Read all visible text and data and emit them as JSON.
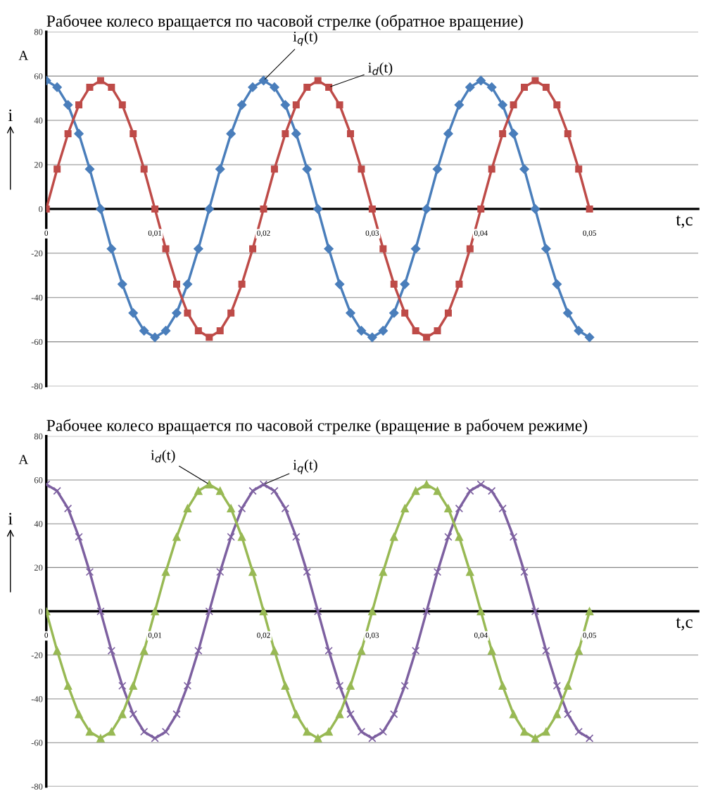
{
  "chart_data": [
    {
      "type": "line",
      "title": "Рабочее колесо вращается по часовой стрелке (обратное вращение)",
      "xlabel": "t,c",
      "ylabel": "i",
      "annotations": [
        "A"
      ],
      "x": [
        0,
        0.001,
        0.002,
        0.003,
        0.004,
        0.005,
        0.006,
        0.007,
        0.008,
        0.009,
        0.01,
        0.011,
        0.012,
        0.013,
        0.014,
        0.015,
        0.016,
        0.017,
        0.018,
        0.019,
        0.02,
        0.021,
        0.022,
        0.023,
        0.024,
        0.025,
        0.026,
        0.027,
        0.028,
        0.029,
        0.03,
        0.031,
        0.032,
        0.033,
        0.034,
        0.035,
        0.036,
        0.037,
        0.038,
        0.039,
        0.04,
        0.041,
        0.042,
        0.043,
        0.044,
        0.045,
        0.046,
        0.047,
        0.048,
        0.049,
        0.05
      ],
      "series": [
        {
          "name": "i$_{q}$(t)",
          "color": "#4a7ebb",
          "marker": "diamond",
          "values": [
            58,
            55,
            47,
            34,
            18,
            0,
            -18,
            -34,
            -47,
            -55,
            -58,
            -55,
            -47,
            -34,
            -18,
            0,
            18,
            34,
            47,
            55,
            58,
            55,
            47,
            34,
            18,
            0,
            -18,
            -34,
            -47,
            -55,
            -58,
            -55,
            -47,
            -34,
            -18,
            0,
            18,
            34,
            47,
            55,
            58,
            55,
            47,
            34,
            18,
            0,
            -18,
            -34,
            -47,
            -55,
            -58
          ]
        },
        {
          "name": "i$_{d}$(t)",
          "color": "#be4b48",
          "marker": "square",
          "values": [
            0,
            18,
            34,
            47,
            55,
            58,
            55,
            47,
            34,
            18,
            0,
            -18,
            -34,
            -47,
            -55,
            -58,
            -55,
            -47,
            -34,
            -18,
            0,
            18,
            34,
            47,
            55,
            58,
            55,
            47,
            34,
            18,
            0,
            -18,
            -34,
            -47,
            -55,
            -58,
            -55,
            -47,
            -34,
            -18,
            0,
            18,
            34,
            47,
            55,
            58,
            55,
            47,
            34,
            18,
            0
          ]
        }
      ],
      "xlim": [
        0,
        0.06
      ],
      "xticks": [
        0,
        {
          "value": 0.01,
          "label": "0,01"
        },
        {
          "value": 0.02,
          "label": "0,02"
        },
        {
          "value": 0.03,
          "label": "0,03"
        },
        {
          "value": 0.04,
          "label": "0,04"
        },
        {
          "value": 0.05,
          "label": "0,05"
        }
      ],
      "ylim": [
        -80,
        80
      ],
      "yticks": [
        -80,
        -60,
        -40,
        -20,
        0,
        20,
        40,
        60,
        80
      ],
      "grid": "y",
      "legend": false
    },
    {
      "type": "line",
      "title": "Рабочее колесо вращается по часовой стрелке (вращение в рабочем режиме)",
      "xlabel": "t,c",
      "ylabel": "i",
      "annotations": [
        "A"
      ],
      "x": [
        0,
        0.001,
        0.002,
        0.003,
        0.004,
        0.005,
        0.006,
        0.007,
        0.008,
        0.009,
        0.01,
        0.011,
        0.012,
        0.013,
        0.014,
        0.015,
        0.016,
        0.017,
        0.018,
        0.019,
        0.02,
        0.021,
        0.022,
        0.023,
        0.024,
        0.025,
        0.026,
        0.027,
        0.028,
        0.029,
        0.03,
        0.031,
        0.032,
        0.033,
        0.034,
        0.035,
        0.036,
        0.037,
        0.038,
        0.039,
        0.04,
        0.041,
        0.042,
        0.043,
        0.044,
        0.045,
        0.046,
        0.047,
        0.048,
        0.049,
        0.05
      ],
      "series": [
        {
          "name": "i$_{q}$(t)",
          "color": "#7d60a0",
          "marker": "cross",
          "values": [
            58,
            55,
            47,
            34,
            18,
            0,
            -18,
            -34,
            -47,
            -55,
            -58,
            -55,
            -47,
            -34,
            -18,
            0,
            18,
            34,
            47,
            55,
            58,
            55,
            47,
            34,
            18,
            0,
            -18,
            -34,
            -47,
            -55,
            -58,
            -55,
            -47,
            -34,
            -18,
            0,
            18,
            34,
            47,
            55,
            58,
            55,
            47,
            34,
            18,
            0,
            -18,
            -34,
            -47,
            -55,
            -58
          ]
        },
        {
          "name": "i$_{d}$(t)",
          "color": "#98b954",
          "marker": "triangle",
          "values": [
            0,
            -18,
            -34,
            -47,
            -55,
            -58,
            -55,
            -47,
            -34,
            -18,
            0,
            18,
            34,
            47,
            55,
            58,
            55,
            47,
            34,
            18,
            0,
            -18,
            -34,
            -47,
            -55,
            -58,
            -55,
            -47,
            -34,
            -18,
            0,
            18,
            34,
            47,
            55,
            58,
            55,
            47,
            34,
            18,
            0,
            -18,
            -34,
            -47,
            -55,
            -58,
            -55,
            -47,
            -34,
            -18,
            0
          ]
        }
      ],
      "xlim": [
        0,
        0.06
      ],
      "xticks": [
        0,
        {
          "value": 0.01,
          "label": "0,01"
        },
        {
          "value": 0.02,
          "label": "0,02"
        },
        {
          "value": 0.03,
          "label": "0,03"
        },
        {
          "value": 0.04,
          "label": "0,04"
        },
        {
          "value": 0.05,
          "label": "0,05"
        }
      ],
      "ylim": [
        -80,
        80
      ],
      "yticks": [
        -80,
        -60,
        -40,
        -20,
        0,
        20,
        40,
        60,
        80
      ],
      "grid": "y",
      "legend": false
    }
  ]
}
